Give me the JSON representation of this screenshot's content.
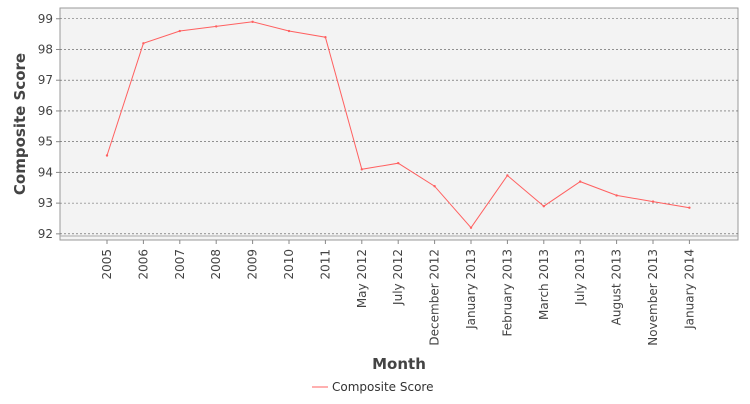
{
  "chart_data": {
    "type": "line",
    "xlabel": "Month",
    "ylabel": "Composite Score",
    "categories": [
      "2005",
      "2006",
      "2007",
      "2008",
      "2009",
      "2010",
      "2011",
      "May 2012",
      "July 2012",
      "December 2012",
      "January 2013",
      "February 2013",
      "March 2013",
      "July 2013",
      "August 2013",
      "November 2013",
      "January 2014"
    ],
    "series": [
      {
        "name": "Composite Score",
        "color": "#ff6060",
        "values": [
          94.55,
          98.2,
          98.6,
          98.75,
          98.9,
          98.6,
          98.4,
          94.1,
          94.3,
          93.55,
          92.2,
          93.9,
          92.9,
          93.7,
          93.25,
          93.05,
          92.85
        ]
      }
    ],
    "ylim": [
      91.8,
      99.35
    ],
    "yticks": [
      "92",
      "93",
      "94",
      "95",
      "96",
      "97",
      "98",
      "99"
    ],
    "grid": true,
    "legend_position": "bottom-center",
    "plot_background": "#f3f3f3",
    "grid_color": "#555555"
  }
}
